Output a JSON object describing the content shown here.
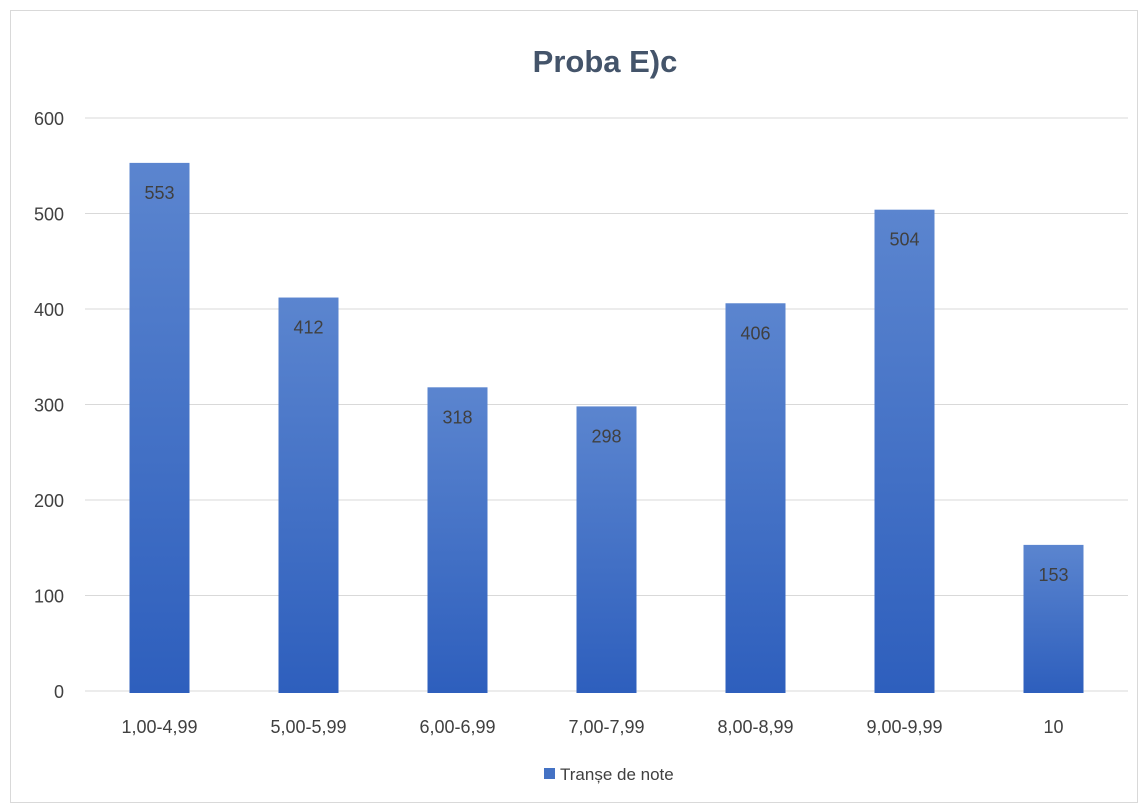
{
  "chart_data": {
    "type": "bar",
    "title": "Proba E)c",
    "xlabel": "",
    "ylabel": "",
    "categories": [
      "1,00-4,99",
      "5,00-5,99",
      "6,00-6,99",
      "7,00-7,99",
      "8,00-8,99",
      "9,00-9,99",
      "10"
    ],
    "series": [
      {
        "name": "Tranșe de note",
        "values": [
          553,
          412,
          318,
          298,
          406,
          504,
          153
        ],
        "color": "#4472c4"
      }
    ],
    "ylim": [
      0,
      600
    ],
    "yticks": [
      0,
      100,
      200,
      300,
      400,
      500,
      600
    ],
    "grid": true,
    "legend_position": "bottom",
    "data_labels": true
  }
}
